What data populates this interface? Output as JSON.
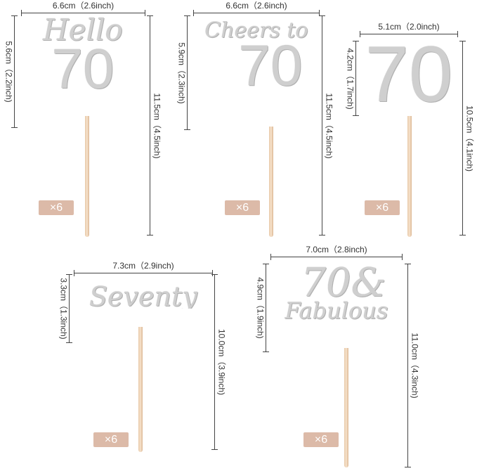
{
  "toppers": [
    {
      "text": "Hello",
      "number": "70",
      "width": "6.6cm（2.6inch)",
      "text_height": "5.6cm（2.2inch)",
      "total_height": "11.5cm（4.5inch)",
      "quantity": "×6"
    },
    {
      "text": "Cheers to",
      "number": "70",
      "width": "6.6cm（2.6inch)",
      "text_height": "5.9cm（2.3inch)",
      "total_height": "11.5cm（4.5inch)",
      "quantity": "×6"
    },
    {
      "number": "70",
      "width": "5.1cm（2.0inch)",
      "text_height": "4.2cm（1.7inch)",
      "total_height": "10.5cm（4.1inch)",
      "quantity": "×6"
    },
    {
      "text": "Seventy",
      "width": "7.3cm（2.9inch)",
      "text_height": "3.3cm（1.3inch)",
      "total_height": "10.0cm（3.9inch)",
      "quantity": "×6"
    },
    {
      "number": "70&",
      "text": "Fabulous",
      "width": "7.0cm（2.8inch)",
      "text_height": "4.9cm（1.9inch)",
      "total_height": "11.0cm（4.3inch)",
      "quantity": "×6"
    }
  ],
  "colors": {
    "badge": "#dcbaa8",
    "glitter": "#cfcfcf",
    "stick": "#eed5bb"
  }
}
